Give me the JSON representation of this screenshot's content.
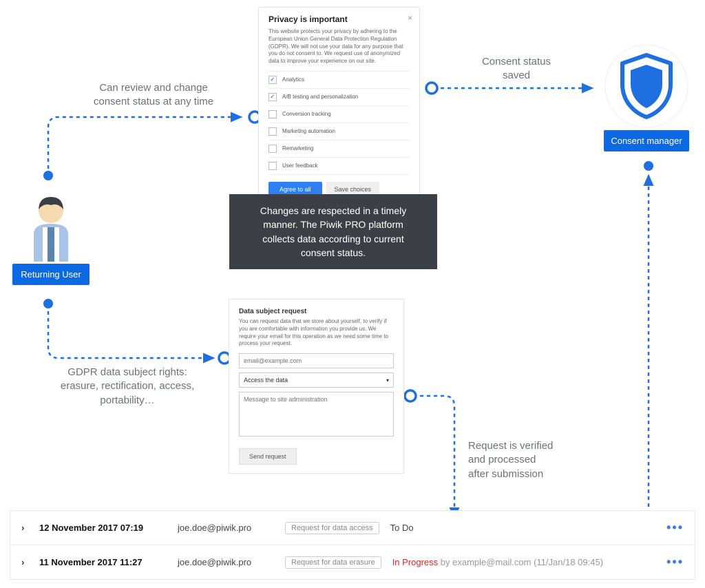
{
  "diagram": {
    "type": "flowchart",
    "colors": {
      "primary": "#0b69e3",
      "flow_stroke": "#1e6fe0",
      "callout_bg": "#3c4046",
      "text_muted": "#6b727b",
      "border": "#e5e5e5",
      "status_progress": "#d52b2b"
    }
  },
  "user": {
    "badge": "Returning User"
  },
  "consent": {
    "badge": "Consent manager"
  },
  "labels": {
    "review": "Can review and change\nconsent status at any time",
    "saved": "Consent status\nsaved",
    "gdpr": "GDPR data subject rights:\nerasure, rectification, access,\nportability…",
    "verified": "Request is verified\nand processed\nafter submission"
  },
  "privacy_dialog": {
    "title": "Privacy is important",
    "desc": "This website protects your privacy by adhering to the European Union General Data Protection Regulation (GDPR). We will not use your data for any purpose that you do not consent to. We request use of anonymized data to improve your experience on our site.",
    "categories": [
      {
        "label": "Analytics",
        "checked": true
      },
      {
        "label": "A/B testing and personalization",
        "checked": true
      },
      {
        "label": "Conversion tracking",
        "checked": false
      },
      {
        "label": "Marketing automation",
        "checked": false
      },
      {
        "label": "Remarketing",
        "checked": false
      },
      {
        "label": "User feedback",
        "checked": false
      }
    ],
    "agree_btn": "Agree to all",
    "save_btn": "Save choices"
  },
  "callout": "Changes are respected in a timely manner. The Piwik PRO platform collects data according to current consent status.",
  "dsr": {
    "title": "Data subject request",
    "desc": "You can request data that we store about yourself, to verify if you are comfortable with information you provide us. We require your email for this operation as we need some time to process your request.",
    "email_placeholder": "email@example.com",
    "select_value": "Access the data",
    "message_placeholder": "Message to site administration",
    "send_btn": "Send request"
  },
  "table": {
    "rows": [
      {
        "date": "12 November 2017 07:19",
        "email": "joe.doe@piwik.pro",
        "tag": "Request for data access",
        "status": "To Do",
        "by": ""
      },
      {
        "date": "11 November 2017 11:27",
        "email": "joe.doe@piwik.pro",
        "tag": "Request for data erasure",
        "status": "In Progress",
        "by": "by example@mail.com (11/Jan/18 09:45)"
      }
    ]
  }
}
